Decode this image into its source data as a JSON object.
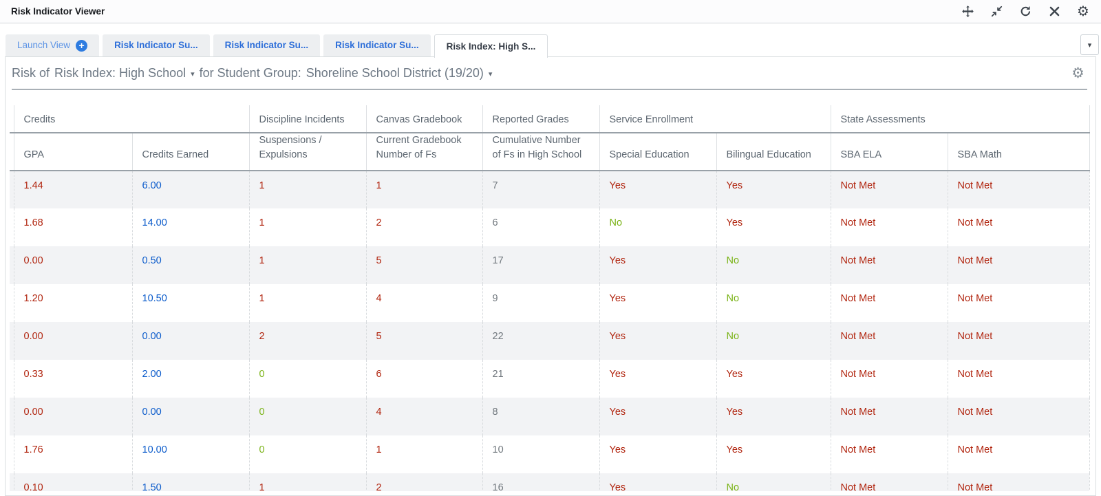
{
  "window": {
    "title": "Risk Indicator Viewer"
  },
  "titlebar_icons": [
    "move",
    "collapse",
    "refresh",
    "close",
    "settings-gear"
  ],
  "glyphs": {
    "caret_down": "▾",
    "plus": "+",
    "gear": "⚙"
  },
  "tabs": {
    "launch_label": "Launch View",
    "items": [
      {
        "label": "Risk Indicator Su..."
      },
      {
        "label": "Risk Indicator Su..."
      },
      {
        "label": "Risk Indicator Su..."
      }
    ],
    "active_label": "Risk Index: High S..."
  },
  "selector": {
    "prefix": "Risk of",
    "view": "Risk Index: High School",
    "middle": "for Student Group:",
    "group": "Shoreline School District (19/20)"
  },
  "colors": {
    "red": "#b1250f",
    "blue": "#0b5bcb",
    "green": "#7ab317",
    "gray": "#71787e",
    "tab_blue": "#2e6fd9",
    "launch_blue": "#5b93e5"
  },
  "table": {
    "groups": [
      {
        "label": "Credits",
        "span": 2
      },
      {
        "label": "Discipline Incidents",
        "span": 1
      },
      {
        "label": "Canvas Gradebook",
        "span": 1
      },
      {
        "label": "Reported Grades",
        "span": 1
      },
      {
        "label": "Service Enrollment",
        "span": 2
      },
      {
        "label": "State Assessments",
        "span": 2
      }
    ],
    "columns": [
      "GPA",
      "Credits Earned",
      "Suspensions / Expulsions",
      "Current Gradebook Number of Fs",
      "Cumulative Number of Fs in High School",
      "Special Education",
      "Bilingual Education",
      "SBA ELA",
      "SBA Math"
    ],
    "rows": [
      [
        {
          "v": "1.44",
          "c": "red"
        },
        {
          "v": "6.00",
          "c": "blue"
        },
        {
          "v": "1",
          "c": "red"
        },
        {
          "v": "1",
          "c": "red"
        },
        {
          "v": "7",
          "c": "gray"
        },
        {
          "v": "Yes",
          "c": "red"
        },
        {
          "v": "Yes",
          "c": "red"
        },
        {
          "v": "Not Met",
          "c": "red"
        },
        {
          "v": "Not Met",
          "c": "red"
        }
      ],
      [
        {
          "v": "1.68",
          "c": "red"
        },
        {
          "v": "14.00",
          "c": "blue"
        },
        {
          "v": "1",
          "c": "red"
        },
        {
          "v": "2",
          "c": "red"
        },
        {
          "v": "6",
          "c": "gray"
        },
        {
          "v": "No",
          "c": "green"
        },
        {
          "v": "Yes",
          "c": "red"
        },
        {
          "v": "Not Met",
          "c": "red"
        },
        {
          "v": "Not Met",
          "c": "red"
        }
      ],
      [
        {
          "v": "0.00",
          "c": "red"
        },
        {
          "v": "0.50",
          "c": "blue"
        },
        {
          "v": "1",
          "c": "red"
        },
        {
          "v": "5",
          "c": "red"
        },
        {
          "v": "17",
          "c": "gray"
        },
        {
          "v": "Yes",
          "c": "red"
        },
        {
          "v": "No",
          "c": "green"
        },
        {
          "v": "Not Met",
          "c": "red"
        },
        {
          "v": "Not Met",
          "c": "red"
        }
      ],
      [
        {
          "v": "1.20",
          "c": "red"
        },
        {
          "v": "10.50",
          "c": "blue"
        },
        {
          "v": "1",
          "c": "red"
        },
        {
          "v": "4",
          "c": "red"
        },
        {
          "v": "9",
          "c": "gray"
        },
        {
          "v": "Yes",
          "c": "red"
        },
        {
          "v": "No",
          "c": "green"
        },
        {
          "v": "Not Met",
          "c": "red"
        },
        {
          "v": "Not Met",
          "c": "red"
        }
      ],
      [
        {
          "v": "0.00",
          "c": "red"
        },
        {
          "v": "0.00",
          "c": "blue"
        },
        {
          "v": "2",
          "c": "red"
        },
        {
          "v": "5",
          "c": "red"
        },
        {
          "v": "22",
          "c": "gray"
        },
        {
          "v": "Yes",
          "c": "red"
        },
        {
          "v": "No",
          "c": "green"
        },
        {
          "v": "Not Met",
          "c": "red"
        },
        {
          "v": "Not Met",
          "c": "red"
        }
      ],
      [
        {
          "v": "0.33",
          "c": "red"
        },
        {
          "v": "2.00",
          "c": "blue"
        },
        {
          "v": "0",
          "c": "green"
        },
        {
          "v": "6",
          "c": "red"
        },
        {
          "v": "21",
          "c": "gray"
        },
        {
          "v": "Yes",
          "c": "red"
        },
        {
          "v": "Yes",
          "c": "red"
        },
        {
          "v": "Not Met",
          "c": "red"
        },
        {
          "v": "Not Met",
          "c": "red"
        }
      ],
      [
        {
          "v": "0.00",
          "c": "red"
        },
        {
          "v": "0.00",
          "c": "blue"
        },
        {
          "v": "0",
          "c": "green"
        },
        {
          "v": "4",
          "c": "red"
        },
        {
          "v": "8",
          "c": "gray"
        },
        {
          "v": "Yes",
          "c": "red"
        },
        {
          "v": "Yes",
          "c": "red"
        },
        {
          "v": "Not Met",
          "c": "red"
        },
        {
          "v": "Not Met",
          "c": "red"
        }
      ],
      [
        {
          "v": "1.76",
          "c": "red"
        },
        {
          "v": "10.00",
          "c": "blue"
        },
        {
          "v": "0",
          "c": "green"
        },
        {
          "v": "1",
          "c": "red"
        },
        {
          "v": "10",
          "c": "gray"
        },
        {
          "v": "Yes",
          "c": "red"
        },
        {
          "v": "Yes",
          "c": "red"
        },
        {
          "v": "Not Met",
          "c": "red"
        },
        {
          "v": "Not Met",
          "c": "red"
        }
      ],
      [
        {
          "v": "0.10",
          "c": "red"
        },
        {
          "v": "1.50",
          "c": "blue"
        },
        {
          "v": "1",
          "c": "red"
        },
        {
          "v": "2",
          "c": "red"
        },
        {
          "v": "16",
          "c": "gray"
        },
        {
          "v": "Yes",
          "c": "red"
        },
        {
          "v": "No",
          "c": "green"
        },
        {
          "v": "Not Met",
          "c": "red"
        },
        {
          "v": "Not Met",
          "c": "red"
        }
      ]
    ]
  }
}
